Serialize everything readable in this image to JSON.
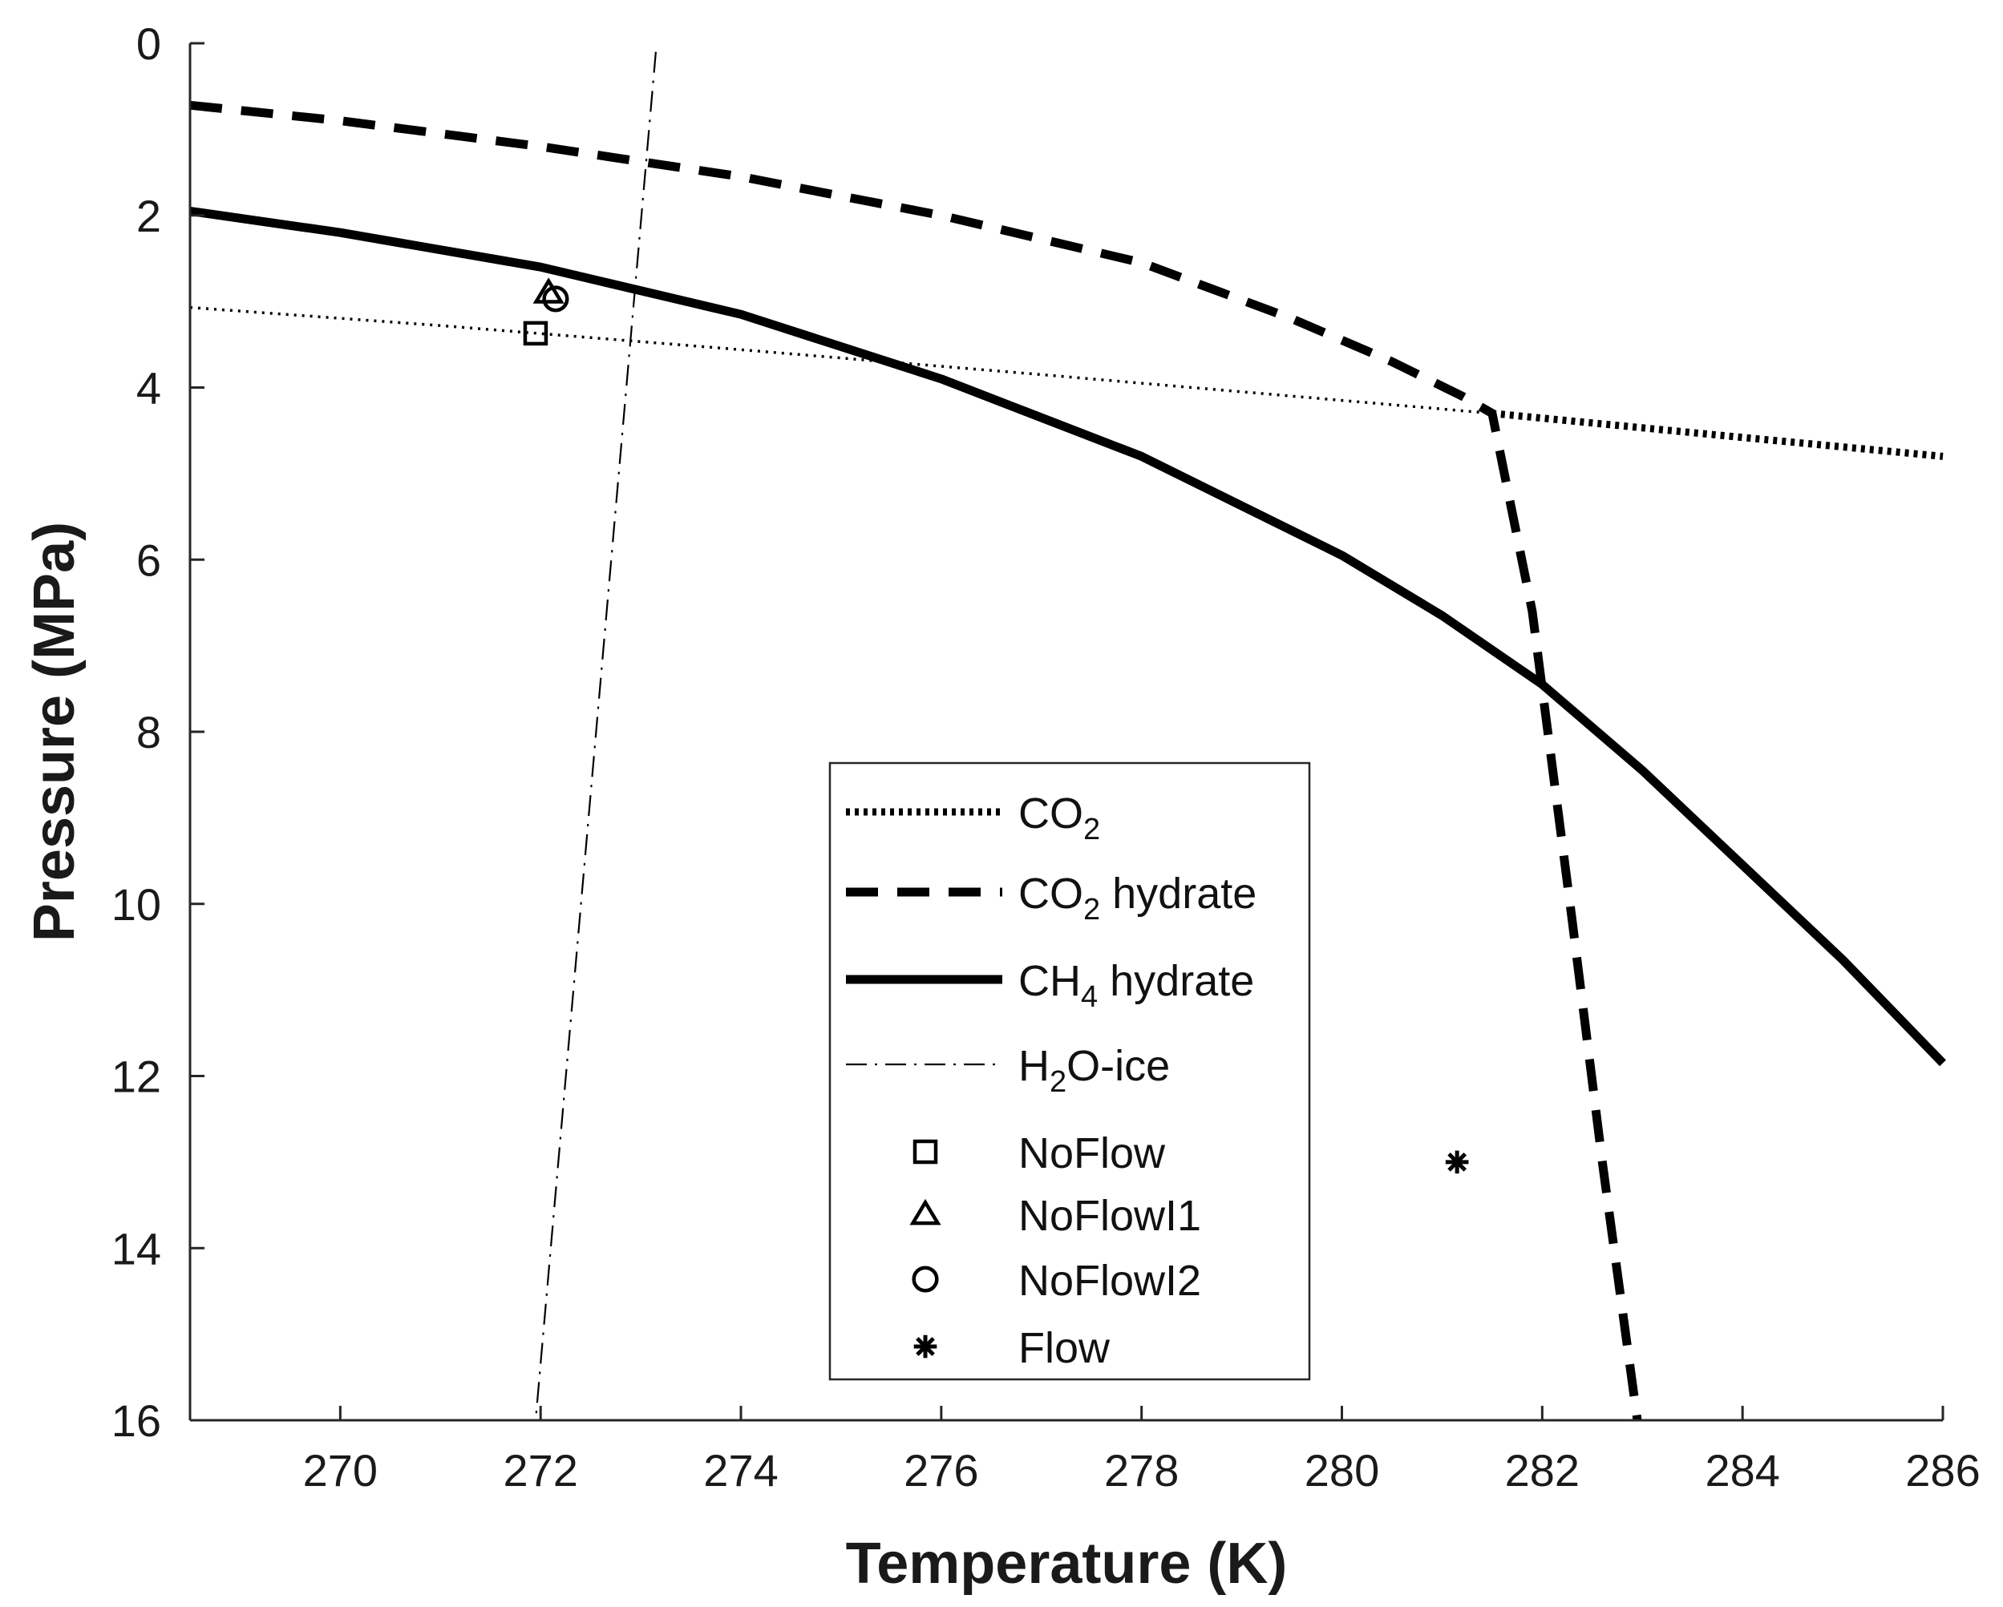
{
  "chart_data": {
    "type": "line",
    "title": "",
    "xlabel": "Temperature (K)",
    "ylabel": "Pressure (MPa)",
    "xlim": [
      268.5,
      286
    ],
    "ylim": [
      0,
      16
    ],
    "y_inverted": true,
    "x_ticks": [
      270,
      272,
      274,
      276,
      278,
      280,
      282,
      284,
      286
    ],
    "y_ticks": [
      0,
      2,
      4,
      6,
      8,
      10,
      12,
      14,
      16
    ],
    "grid": false,
    "legend_position": "bottom-center",
    "series": [
      {
        "name": "CO2",
        "label_main": "CO",
        "label_sub": "2",
        "label_rest": "",
        "style": "dotted",
        "width": "thin-then-thick",
        "x": [
          268.5,
          271,
          274,
          277,
          279.5,
          281.5,
          284,
          286
        ],
        "y": [
          3.07,
          3.28,
          3.56,
          3.85,
          4.1,
          4.3,
          4.58,
          4.8
        ]
      },
      {
        "name": "CO2 hydrate",
        "label_main": "CO",
        "label_sub": "2",
        "label_rest": " hydrate",
        "style": "dashed",
        "x": [
          268.5,
          270,
          272,
          274,
          276,
          278,
          279.5,
          280.5,
          281.2,
          281.5,
          281.9,
          282.3,
          282.6,
          282.95
        ],
        "y": [
          0.72,
          0.9,
          1.2,
          1.55,
          2.0,
          2.55,
          3.2,
          3.7,
          4.1,
          4.3,
          6.6,
          10.2,
          13.0,
          16.0
        ]
      },
      {
        "name": "CH4 hydrate",
        "label_main": "CH",
        "label_sub": "4",
        "label_rest": " hydrate",
        "style": "solid",
        "x": [
          268.5,
          270,
          272,
          274,
          276,
          278,
          280,
          281,
          282,
          283,
          284,
          285,
          286
        ],
        "y": [
          1.95,
          2.2,
          2.6,
          3.15,
          3.9,
          4.8,
          5.95,
          6.65,
          7.45,
          8.45,
          9.55,
          10.65,
          11.85
        ]
      },
      {
        "name": "H2O-ice",
        "label_main": "H",
        "label_sub": "2",
        "label_rest": "O-ice",
        "style": "dashdot",
        "x": [
          273.15,
          271.95
        ],
        "y": [
          0.1,
          16.0
        ]
      }
    ],
    "points": [
      {
        "name": "NoFlow",
        "marker": "square",
        "x": 271.95,
        "y": 3.37
      },
      {
        "name": "NoFlowI1",
        "marker": "triangle",
        "x": 272.08,
        "y": 2.9
      },
      {
        "name": "NoFlowI2",
        "marker": "circle",
        "x": 272.15,
        "y": 2.97
      },
      {
        "name": "Flow",
        "marker": "asterisk",
        "x": 281.15,
        "y": 13.0
      }
    ]
  },
  "colors": {
    "line": "#000000",
    "axis": "#262626",
    "text": "#1a1a1a",
    "background": "#ffffff"
  }
}
